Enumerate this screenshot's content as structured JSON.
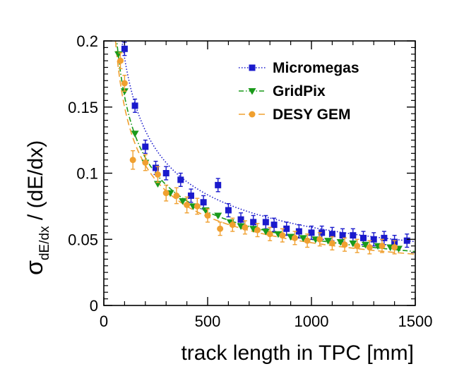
{
  "chart_data": {
    "type": "scatter",
    "xlabel": "track length in TPC [mm]",
    "ylabel_main": "σ",
    "ylabel_sub": "dE/dx",
    "ylabel_rest": " / (dE/dx)",
    "xlim": [
      0,
      1500
    ],
    "ylim": [
      0,
      0.2
    ],
    "x_ticks": [
      0,
      500,
      1000,
      1500
    ],
    "x_tick_labels": [
      "0",
      "500",
      "1000",
      "1500"
    ],
    "y_ticks": [
      0,
      0.05,
      0.1,
      0.15,
      0.2
    ],
    "y_tick_labels": [
      "0",
      "0.05",
      "0.1",
      "0.15",
      "0.2"
    ],
    "grid": false,
    "legend_position": "top-right",
    "series": [
      {
        "name": "Micromegas",
        "color": "#1a1acc",
        "marker": "square",
        "line_style": "dotted",
        "fit_coefficient": 1.87,
        "x": [
          100,
          150,
          200,
          250,
          300,
          370,
          420,
          480,
          550,
          600,
          660,
          720,
          780,
          820,
          880,
          940,
          1000,
          1050,
          1100,
          1150,
          1200,
          1250,
          1300,
          1350,
          1400,
          1460
        ],
        "y": [
          0.194,
          0.151,
          0.12,
          0.104,
          0.1,
          0.095,
          0.083,
          0.078,
          0.091,
          0.072,
          0.065,
          0.063,
          0.063,
          0.061,
          0.058,
          0.056,
          0.055,
          0.055,
          0.054,
          0.053,
          0.053,
          0.051,
          0.05,
          0.051,
          0.048,
          0.049
        ],
        "y_err": [
          0.005,
          0.005,
          0.005,
          0.005,
          0.005,
          0.005,
          0.005,
          0.005,
          0.005,
          0.005,
          0.005,
          0.005,
          0.005,
          0.005,
          0.005,
          0.005,
          0.005,
          0.005,
          0.005,
          0.005,
          0.005,
          0.005,
          0.005,
          0.005,
          0.005,
          0.005
        ]
      },
      {
        "name": "GridPix",
        "color": "#1a9a1a",
        "marker": "triangle-down",
        "line_style": "dash-dot",
        "fit_coefficient": 1.58,
        "x": [
          70,
          100,
          150,
          200,
          260,
          320,
          380,
          430,
          490,
          550,
          610,
          660,
          720,
          780,
          840,
          900,
          960,
          1020,
          1080,
          1140,
          1200,
          1260,
          1320,
          1380,
          1420
        ],
        "y": [
          0.19,
          0.162,
          0.13,
          0.108,
          0.092,
          0.085,
          0.079,
          0.075,
          0.072,
          0.068,
          0.063,
          0.06,
          0.058,
          0.056,
          0.054,
          0.052,
          0.051,
          0.05,
          0.049,
          0.048,
          0.047,
          0.046,
          0.045,
          0.044,
          0.043
        ]
      },
      {
        "name": "DESY GEM",
        "color": "#f0a030",
        "marker": "circle",
        "line_style": "dashed",
        "fit_coefficient": 1.5,
        "x": [
          80,
          100,
          140,
          200,
          260,
          300,
          350,
          400,
          450,
          500,
          560,
          620,
          680,
          740,
          800,
          860,
          920,
          980,
          1040,
          1100,
          1160,
          1220,
          1280,
          1340,
          1400
        ],
        "y": [
          0.185,
          0.168,
          0.11,
          0.108,
          0.099,
          0.085,
          0.083,
          0.076,
          0.075,
          0.068,
          0.058,
          0.061,
          0.059,
          0.057,
          0.054,
          0.053,
          0.051,
          0.049,
          0.05,
          0.047,
          0.046,
          0.045,
          0.044,
          0.045,
          0.044
        ],
        "y_err": [
          0.006,
          0.006,
          0.007,
          0.006,
          0.006,
          0.006,
          0.006,
          0.006,
          0.006,
          0.005,
          0.005,
          0.005,
          0.005,
          0.005,
          0.005,
          0.005,
          0.005,
          0.005,
          0.005,
          0.005,
          0.005,
          0.005,
          0.005,
          0.005,
          0.005
        ]
      }
    ]
  }
}
